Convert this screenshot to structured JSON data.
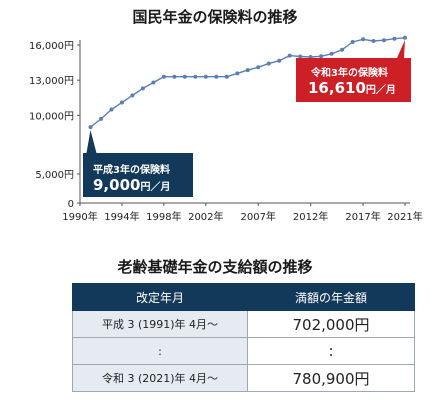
{
  "chart_title": "国民年金の保険料の推移",
  "table_title": "老齢基礎年金の支給額の推移",
  "colors": {
    "line": "#5b7fb5",
    "navy": "#12385a",
    "red": "#cc1f26",
    "axis": "#555555"
  },
  "chart_data": {
    "type": "line",
    "title": "国民年金の保険料の推移",
    "xlabel": "",
    "ylabel": "",
    "xlim": [
      1990,
      2021
    ],
    "ylim": [
      0,
      16000
    ],
    "y_scale": "broken: 0 to 5,000 compressed, 5,000 to 16,000 linear",
    "grid": false,
    "y_ticks": [
      {
        "value": 0,
        "label": "0"
      },
      {
        "value": 5000,
        "label": "5,000円"
      },
      {
        "value": 10000,
        "label": "10,000円"
      },
      {
        "value": 13000,
        "label": "13,000円"
      },
      {
        "value": 16000,
        "label": "16,000円"
      }
    ],
    "x_ticks": [
      {
        "value": 1990,
        "label": "1990年"
      },
      {
        "value": 1994,
        "label": "1994年"
      },
      {
        "value": 1998,
        "label": "1998年"
      },
      {
        "value": 2002,
        "label": "2002年"
      },
      {
        "value": 2007,
        "label": "2007年"
      },
      {
        "value": 2012,
        "label": "2012年"
      },
      {
        "value": 2017,
        "label": "2017年"
      },
      {
        "value": 2021,
        "label": "2021年"
      }
    ],
    "series": [
      {
        "x": [
          1991,
          1992,
          1993,
          1994,
          1995,
          1996,
          1997,
          1998,
          1999,
          2000,
          2001,
          2002,
          2003,
          2004,
          2005,
          2006,
          2007,
          2008,
          2009,
          2010,
          2011,
          2012,
          2013,
          2014,
          2015,
          2016,
          2017,
          2018,
          2019,
          2020,
          2021
        ],
        "y": [
          9000,
          9700,
          10500,
          11100,
          11700,
          12300,
          12800,
          13300,
          13300,
          13300,
          13300,
          13300,
          13300,
          13300,
          13580,
          13860,
          14100,
          14410,
          14660,
          15100,
          15020,
          14980,
          15040,
          15250,
          15590,
          16260,
          16490,
          16340,
          16410,
          16540,
          16610
        ]
      }
    ],
    "annotations": [
      {
        "label": "平成3年の保険料",
        "value": "9,000",
        "unit": "円／月"
      },
      {
        "label": "令和3年の保険料",
        "value": "16,610",
        "unit": "円／月"
      }
    ]
  },
  "table": {
    "headers": [
      "改定年月",
      "満額の年金額"
    ],
    "rows": [
      [
        "平成 3 (1991)年 4月～",
        "702,000円"
      ],
      [
        ":",
        ":"
      ],
      [
        "令和 3 (2021)年 4月～",
        "780,900円"
      ]
    ]
  }
}
